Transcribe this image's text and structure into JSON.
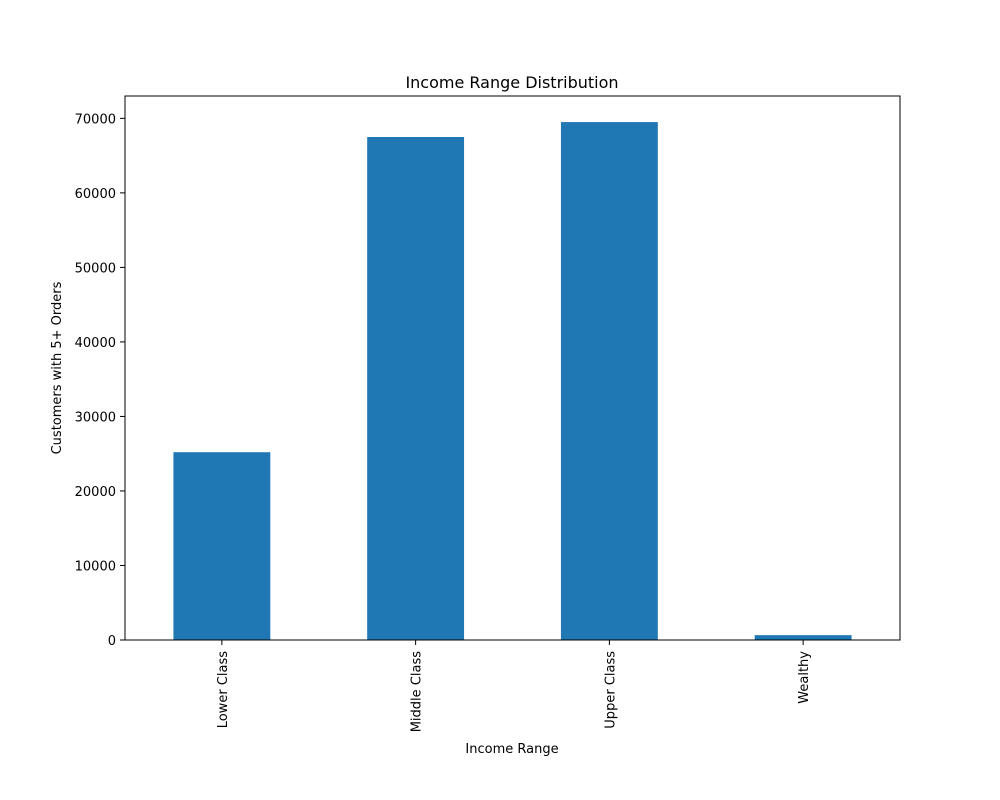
{
  "chart_data": {
    "type": "bar",
    "title": "Income Range Distribution",
    "xlabel": "Income Range",
    "ylabel": "Customers with 5+ Orders",
    "categories": [
      "Lower Class",
      "Middle Class",
      "Upper Class",
      "Wealthy"
    ],
    "values": [
      25200,
      67500,
      69500,
      650
    ],
    "ylim": [
      0,
      73000
    ],
    "yticks": [
      0,
      10000,
      20000,
      30000,
      40000,
      50000,
      60000,
      70000
    ],
    "ytick_labels": [
      "0",
      "10000",
      "20000",
      "30000",
      "40000",
      "50000",
      "60000",
      "70000"
    ],
    "bar_color": "#1f77b4",
    "grid": false,
    "legend": false
  }
}
